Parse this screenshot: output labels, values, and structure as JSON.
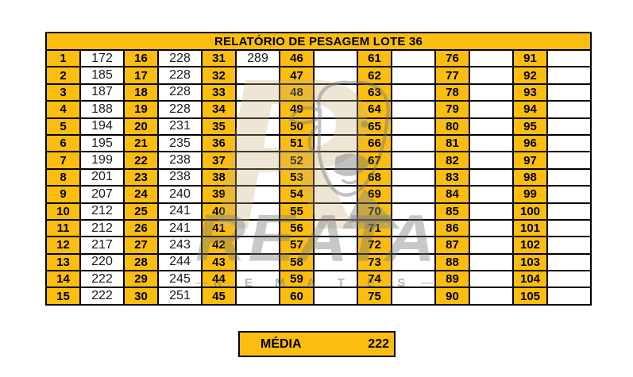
{
  "title": "RELATÓRIO DE PESAGEM LOTE  36",
  "colors": {
    "accent": "#FBBE10",
    "grid": "#000000",
    "watermark_tan": "#CAB27C",
    "watermark_gray": "#787878"
  },
  "table": {
    "rows_per_column": 15,
    "pairs": [
      {
        "numbers": [
          "1",
          "2",
          "3",
          "4",
          "5",
          "6",
          "7",
          "8",
          "9",
          "10",
          "11",
          "12",
          "13",
          "14",
          "15"
        ],
        "values": [
          "172",
          "185",
          "187",
          "188",
          "194",
          "195",
          "199",
          "201",
          "207",
          "212",
          "212",
          "217",
          "220",
          "222",
          "222"
        ]
      },
      {
        "numbers": [
          "16",
          "17",
          "18",
          "19",
          "20",
          "21",
          "22",
          "23",
          "24",
          "25",
          "26",
          "27",
          "28",
          "29",
          "30"
        ],
        "values": [
          "228",
          "228",
          "228",
          "228",
          "231",
          "235",
          "238",
          "238",
          "240",
          "241",
          "241",
          "243",
          "244",
          "245",
          "251"
        ]
      },
      {
        "numbers": [
          "31",
          "32",
          "33",
          "34",
          "35",
          "36",
          "37",
          "38",
          "39",
          "40",
          "41",
          "42",
          "43",
          "44",
          "45"
        ],
        "values": [
          "289",
          "",
          "",
          "",
          "",
          "",
          "",
          "",
          "",
          "",
          "",
          "",
          "",
          "",
          ""
        ]
      },
      {
        "numbers": [
          "46",
          "47",
          "48",
          "49",
          "50",
          "51",
          "52",
          "53",
          "54",
          "55",
          "56",
          "57",
          "58",
          "59",
          "60"
        ],
        "values": [
          "",
          "",
          "",
          "",
          "",
          "",
          "",
          "",
          "",
          "",
          "",
          "",
          "",
          "",
          ""
        ]
      },
      {
        "numbers": [
          "61",
          "62",
          "63",
          "64",
          "65",
          "66",
          "67",
          "68",
          "69",
          "70",
          "71",
          "72",
          "73",
          "74",
          "75"
        ],
        "values": [
          "",
          "",
          "",
          "",
          "",
          "",
          "",
          "",
          "",
          "",
          "",
          "",
          "",
          "",
          ""
        ]
      },
      {
        "numbers": [
          "76",
          "77",
          "78",
          "79",
          "80",
          "81",
          "82",
          "83",
          "84",
          "85",
          "86",
          "87",
          "88",
          "89",
          "90"
        ],
        "values": [
          "",
          "",
          "",
          "",
          "",
          "",
          "",
          "",
          "",
          "",
          "",
          "",
          "",
          "",
          ""
        ]
      },
      {
        "numbers": [
          "91",
          "92",
          "93",
          "94",
          "95",
          "96",
          "97",
          "98",
          "99",
          "100",
          "101",
          "102",
          "103",
          "104",
          "105"
        ],
        "values": [
          "",
          "",
          "",
          "",
          "",
          "",
          "",
          "",
          "",
          "",
          "",
          "",
          "",
          "",
          ""
        ]
      }
    ]
  },
  "media": {
    "label": "MÉDIA",
    "value": "222"
  },
  "watermark": {
    "monogram": "R",
    "brand": "REATA",
    "subtitle": "R E M A T E S",
    "dash": "—"
  }
}
